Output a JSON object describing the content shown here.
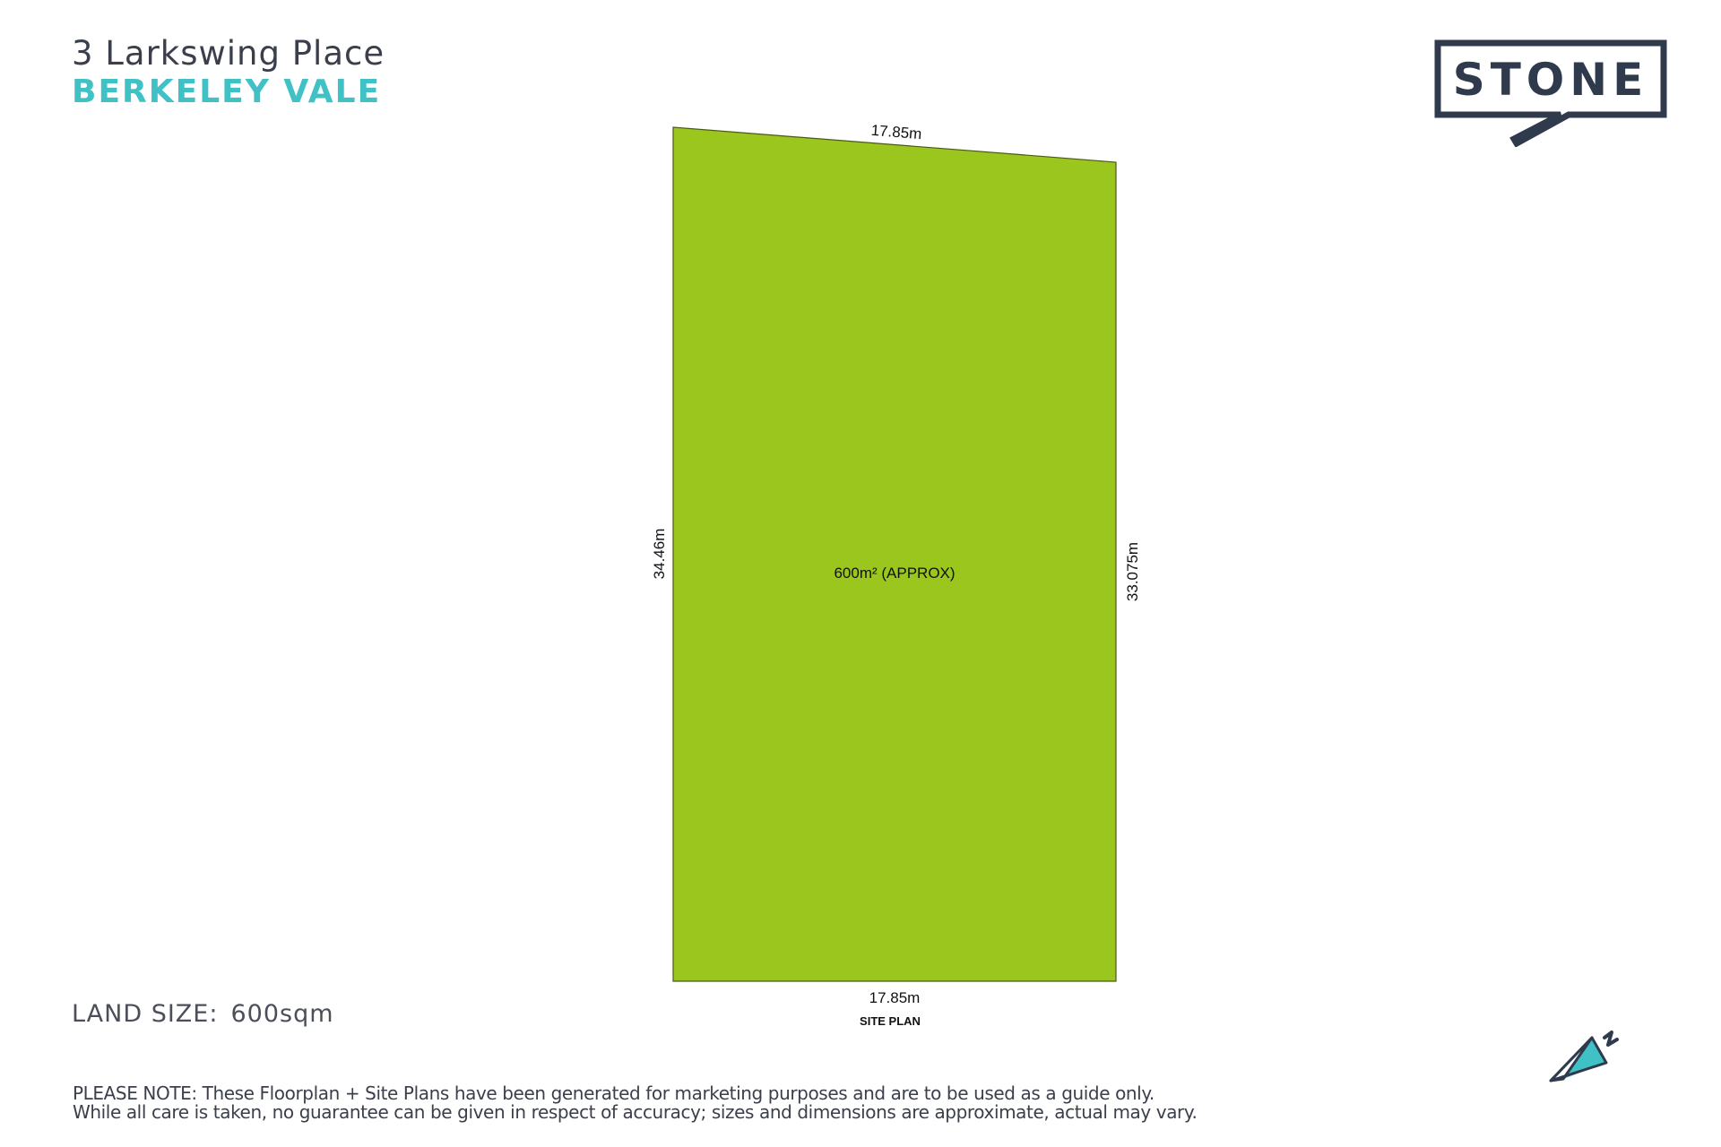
{
  "header": {
    "address": "3 Larkswing Place",
    "suburb": "BERKELEY VALE"
  },
  "logo": {
    "text": "STONE",
    "color": "#2f3a4d"
  },
  "site_plan": {
    "area_label": "600m² (APPROX)",
    "dimensions": {
      "top": "17.85m",
      "bottom": "17.85m",
      "left": "34.46m",
      "right": "33.075m"
    },
    "caption": "SITE PLAN",
    "fill_color": "#9ac61e",
    "outline_color": "#4a5a14"
  },
  "land_size": {
    "label": "LAND SIZE:",
    "value": "600sqm"
  },
  "north_arrow": {
    "icon": "north-arrow-icon",
    "accent": "#3fc1c6"
  },
  "disclaimer": {
    "line1": "PLEASE NOTE: These Floorplan + Site Plans have been generated for marketing purposes and are to be used as a guide only.",
    "line2": "While all care is taken, no guarantee can be given in respect of accuracy; sizes and dimensions are approximate, actual may vary."
  }
}
